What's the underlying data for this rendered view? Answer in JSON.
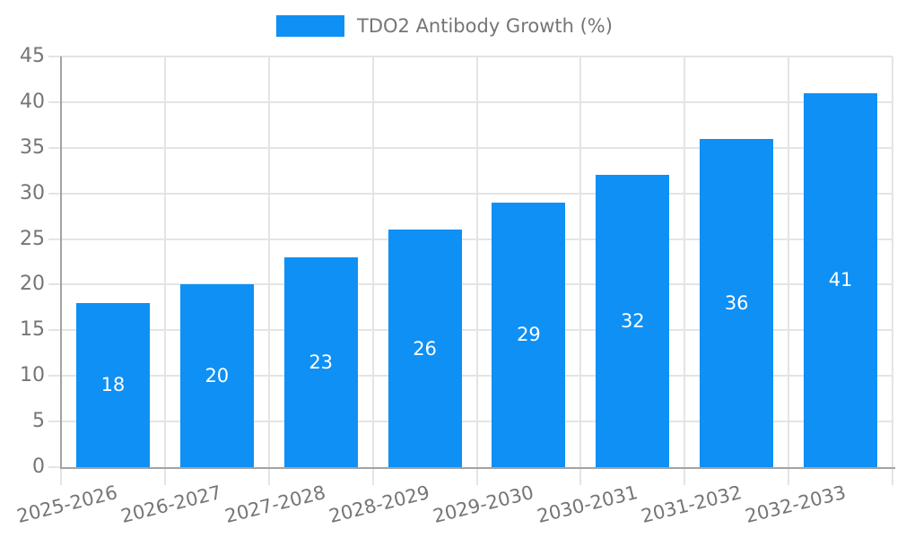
{
  "chart_data": {
    "type": "bar",
    "title": "",
    "legend": {
      "label": "TDO2 Antibody Growth (%)",
      "position": "top"
    },
    "categories": [
      "2025-2026",
      "2026-2027",
      "2027-2028",
      "2028-2029",
      "2029-2030",
      "2030-2031",
      "2031-2032",
      "2032-2033"
    ],
    "series": [
      {
        "name": "TDO2 Antibody Growth (%)",
        "values": [
          18,
          20,
          23,
          26,
          29,
          32,
          36,
          41
        ]
      }
    ],
    "xlabel": "",
    "ylabel": "",
    "ylim": [
      0,
      45
    ],
    "y_ticks": [
      0,
      5,
      10,
      15,
      20,
      25,
      30,
      35,
      40,
      45
    ],
    "grid": true,
    "value_labels_shown": true,
    "x_label_rotation_deg": -14,
    "colors": {
      "bar": "#0e90f5",
      "value_label": "#ffffff",
      "axis_text": "#757575",
      "grid": "#e4e4e4",
      "axis_line": "#a3a3a3",
      "background": "#ffffff"
    }
  }
}
